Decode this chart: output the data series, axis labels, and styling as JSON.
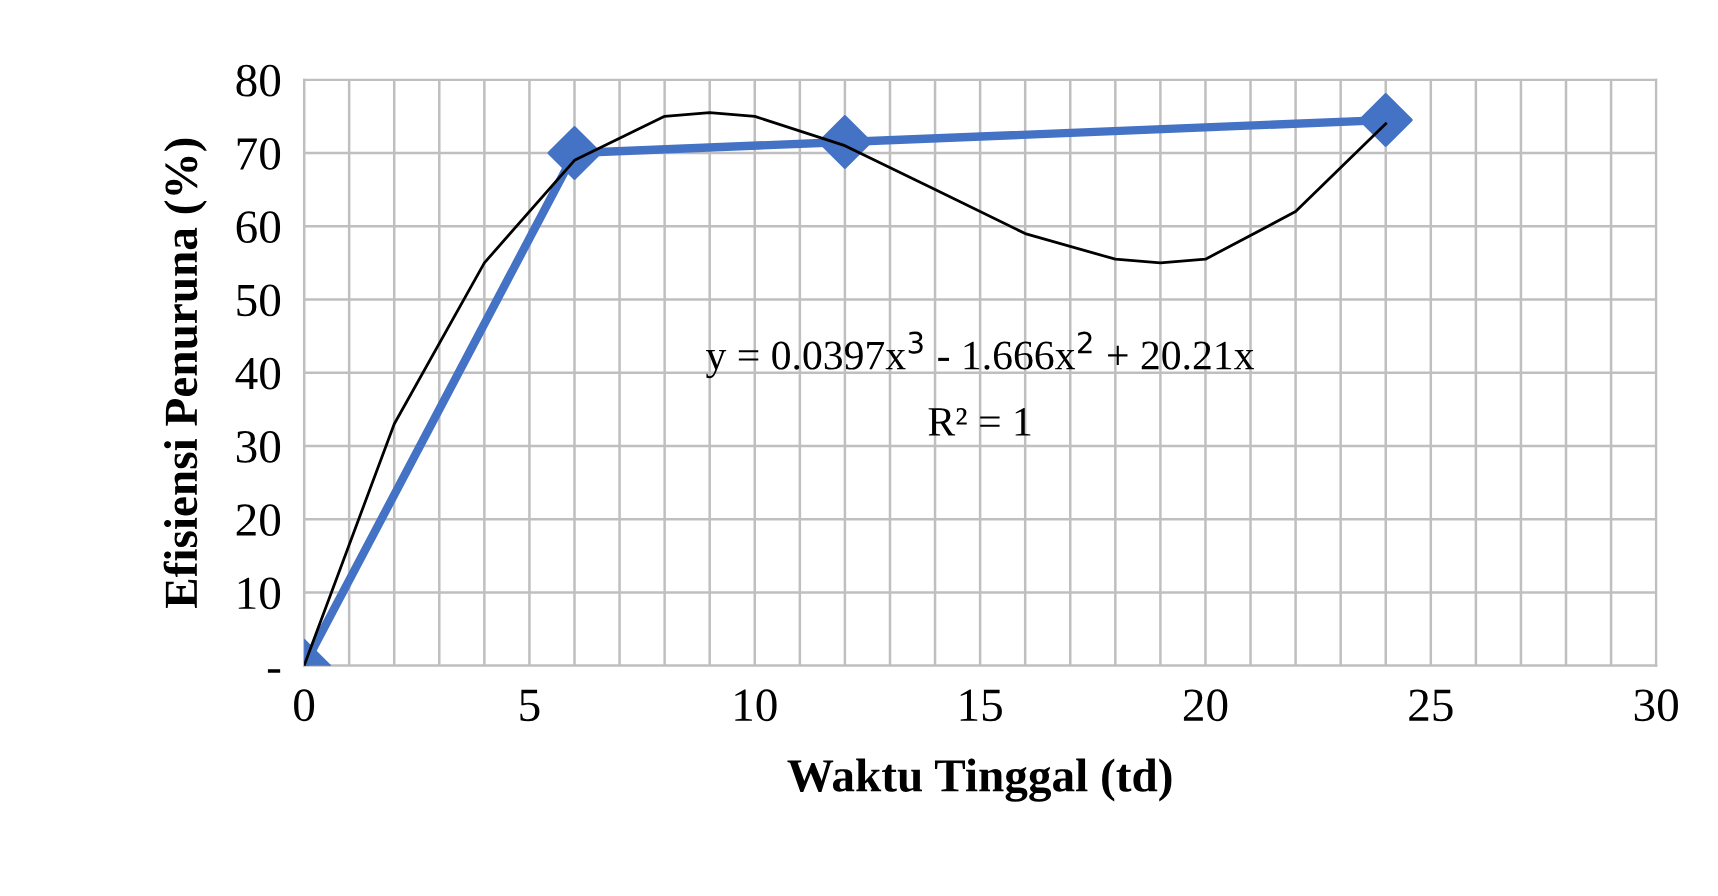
{
  "chart_data": {
    "type": "line",
    "xlabel": "Waktu Tinggal (td)",
    "ylabel": "Efisiensi Penuruna (%)",
    "xlim": [
      0,
      30
    ],
    "ylim": [
      0,
      80
    ],
    "xticks": [
      0,
      {
        "value": 1,
        "label": null
      },
      {
        "value": 2,
        "label": null
      },
      {
        "value": 3,
        "label": null
      },
      {
        "value": 4,
        "label": null
      },
      5,
      {
        "value": 6,
        "label": null
      },
      {
        "value": 7,
        "label": null
      },
      {
        "value": 8,
        "label": null
      },
      {
        "value": 9,
        "label": null
      },
      10,
      {
        "value": 11,
        "label": null
      },
      {
        "value": 12,
        "label": null
      },
      {
        "value": 13,
        "label": null
      },
      {
        "value": 14,
        "label": null
      },
      15,
      {
        "value": 16,
        "label": null
      },
      {
        "value": 17,
        "label": null
      },
      {
        "value": 18,
        "label": null
      },
      {
        "value": 19,
        "label": null
      },
      20,
      {
        "value": 21,
        "label": null
      },
      {
        "value": 22,
        "label": null
      },
      {
        "value": 23,
        "label": null
      },
      {
        "value": 24,
        "label": null
      },
      25,
      {
        "value": 26,
        "label": null
      },
      {
        "value": 27,
        "label": null
      },
      {
        "value": 28,
        "label": null
      },
      {
        "value": 29,
        "label": null
      },
      30
    ],
    "yticks": [
      {
        "value": 0,
        "label": "-"
      },
      10,
      20,
      30,
      40,
      50,
      60,
      70,
      80
    ],
    "grid": true,
    "legend": false,
    "series": [
      {
        "color": "#4472c4",
        "marker": "diamond",
        "line_style": "solid",
        "x": [
          0,
          6,
          12,
          24
        ],
        "values": [
          0,
          70,
          71.5,
          74.5
        ]
      },
      {
        "color": "#000000",
        "marker": "none",
        "line_style": "solid",
        "x": [
          0,
          2,
          4,
          6,
          8,
          9,
          10,
          12,
          14,
          16,
          18,
          19,
          20,
          22,
          24
        ],
        "values": [
          0,
          33,
          55,
          69,
          75,
          75.5,
          75,
          71,
          65,
          59,
          55.5,
          55,
          55.5,
          62,
          74
        ]
      }
    ],
    "annotations": [
      "y = 0.0397x$^{3}$ - 1.666x$^{2}$ + 20.21x",
      "R² = 1"
    ]
  }
}
